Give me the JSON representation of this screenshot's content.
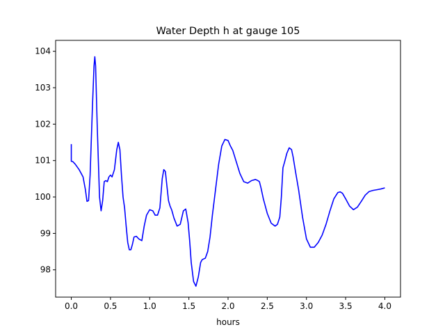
{
  "chart_data": {
    "type": "line",
    "title": "Water Depth h at gauge 105",
    "xlabel": "hours",
    "ylabel": "",
    "xlim": [
      -0.2,
      4.2
    ],
    "ylim": [
      97.25,
      104.3
    ],
    "xticks": [
      0.0,
      0.5,
      1.0,
      1.5,
      2.0,
      2.5,
      3.0,
      3.5,
      4.0
    ],
    "xtick_labels": [
      "0.0",
      "0.5",
      "1.0",
      "1.5",
      "2.0",
      "2.5",
      "3.0",
      "3.5",
      "4.0"
    ],
    "yticks": [
      98,
      99,
      100,
      101,
      102,
      103,
      104
    ],
    "ytick_labels": [
      "98",
      "99",
      "100",
      "101",
      "102",
      "103",
      "104"
    ],
    "grid": false,
    "series": [
      {
        "color": "#0000ff",
        "x": [
          0.0,
          0.0,
          0.02,
          0.05,
          0.1,
          0.15,
          0.18,
          0.2,
          0.22,
          0.24,
          0.27,
          0.29,
          0.3,
          0.31,
          0.33,
          0.36,
          0.38,
          0.4,
          0.42,
          0.44,
          0.46,
          0.48,
          0.5,
          0.52,
          0.55,
          0.58,
          0.6,
          0.62,
          0.64,
          0.66,
          0.68,
          0.7,
          0.72,
          0.74,
          0.76,
          0.78,
          0.8,
          0.83,
          0.86,
          0.9,
          0.93,
          0.96,
          1.0,
          1.04,
          1.07,
          1.1,
          1.13,
          1.16,
          1.18,
          1.2,
          1.22,
          1.24,
          1.26,
          1.28,
          1.31,
          1.35,
          1.39,
          1.43,
          1.46,
          1.49,
          1.51,
          1.53,
          1.56,
          1.59,
          1.62,
          1.65,
          1.67,
          1.69,
          1.71,
          1.74,
          1.77,
          1.8,
          1.84,
          1.88,
          1.92,
          1.96,
          2.0,
          2.03,
          2.06,
          2.1,
          2.15,
          2.2,
          2.25,
          2.3,
          2.35,
          2.38,
          2.4,
          2.42,
          2.45,
          2.5,
          2.55,
          2.6,
          2.63,
          2.66,
          2.68,
          2.7,
          2.72,
          2.75,
          2.78,
          2.81,
          2.83,
          2.86,
          2.9,
          2.95,
          3.0,
          3.05,
          3.1,
          3.15,
          3.2,
          3.25,
          3.3,
          3.35,
          3.4,
          3.43,
          3.46,
          3.5,
          3.55,
          3.6,
          3.65,
          3.7,
          3.75,
          3.8,
          3.85,
          3.9,
          3.95,
          4.0
        ],
        "y": [
          101.45,
          100.98,
          100.97,
          100.9,
          100.75,
          100.55,
          100.2,
          99.88,
          99.9,
          100.6,
          102.5,
          103.6,
          103.85,
          103.6,
          102.0,
          100.0,
          99.62,
          99.9,
          100.42,
          100.45,
          100.42,
          100.55,
          100.6,
          100.55,
          100.75,
          101.3,
          101.5,
          101.3,
          100.6,
          100.0,
          99.7,
          99.2,
          98.75,
          98.55,
          98.55,
          98.7,
          98.9,
          98.92,
          98.85,
          98.8,
          99.2,
          99.5,
          99.65,
          99.62,
          99.5,
          99.5,
          99.7,
          100.5,
          100.75,
          100.7,
          100.3,
          99.9,
          99.75,
          99.65,
          99.42,
          99.2,
          99.25,
          99.62,
          99.67,
          99.3,
          98.8,
          98.2,
          97.68,
          97.55,
          97.8,
          98.2,
          98.28,
          98.3,
          98.32,
          98.5,
          98.9,
          99.5,
          100.2,
          100.9,
          101.4,
          101.58,
          101.55,
          101.4,
          101.28,
          101.0,
          100.65,
          100.42,
          100.38,
          100.45,
          100.48,
          100.45,
          100.42,
          100.25,
          99.95,
          99.55,
          99.28,
          99.2,
          99.25,
          99.45,
          100.0,
          100.8,
          100.95,
          101.2,
          101.35,
          101.3,
          101.1,
          100.7,
          100.2,
          99.45,
          98.85,
          98.62,
          98.62,
          98.75,
          98.95,
          99.25,
          99.62,
          99.95,
          100.12,
          100.14,
          100.1,
          99.95,
          99.75,
          99.65,
          99.72,
          99.88,
          100.05,
          100.15,
          100.18,
          100.2,
          100.22,
          100.25
        ]
      }
    ]
  }
}
